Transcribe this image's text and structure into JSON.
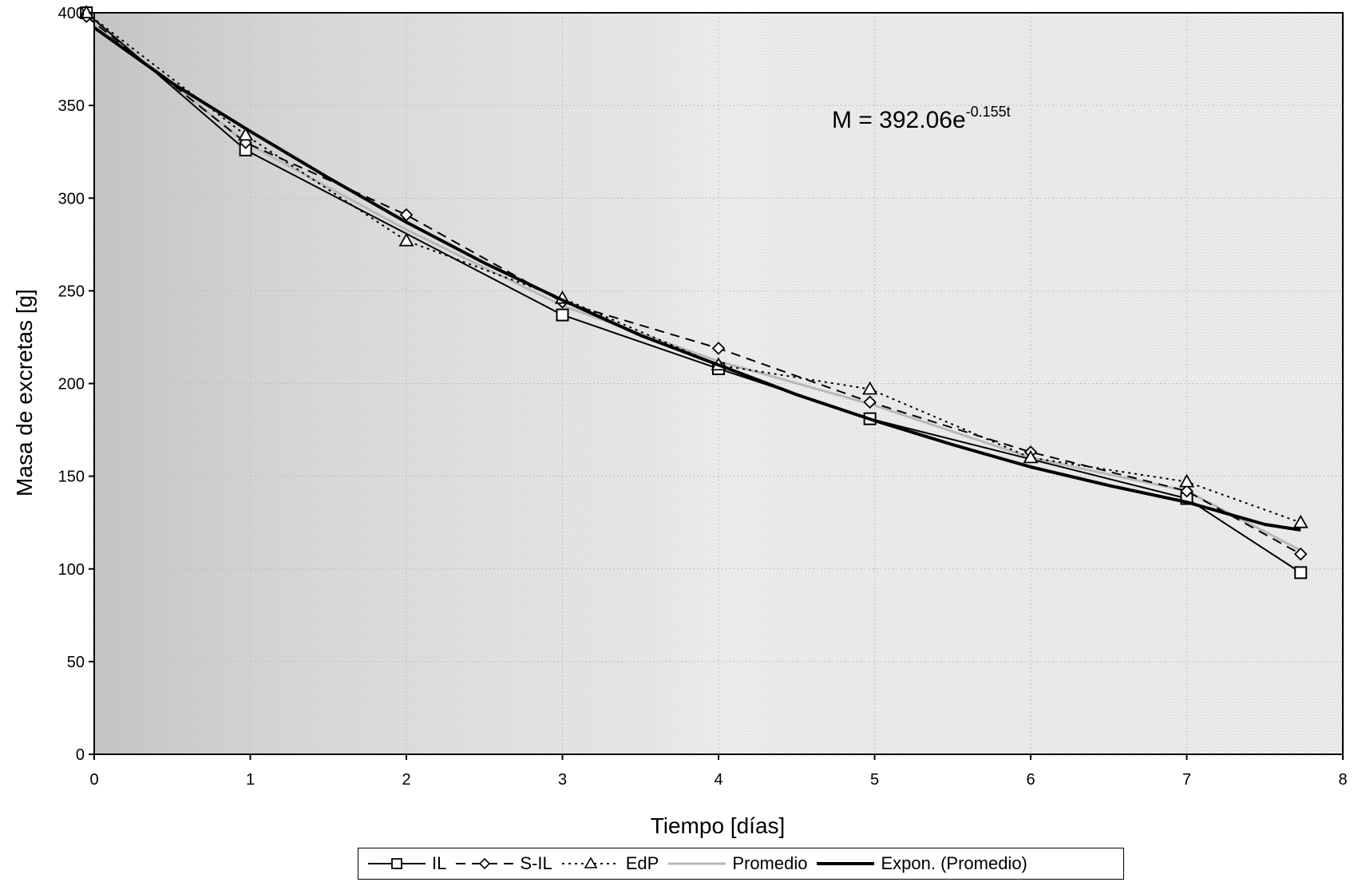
{
  "chart_data": {
    "type": "line",
    "xlabel": "Tiempo [días]",
    "ylabel": "Masa de excretas [g]",
    "xlim": [
      0,
      8
    ],
    "ylim": [
      0,
      400
    ],
    "xticks": [
      "0",
      "1",
      "2",
      "3",
      "4",
      "5",
      "6",
      "7",
      "8"
    ],
    "yticks": [
      "0",
      "50",
      "100",
      "150",
      "200",
      "250",
      "300",
      "350",
      "400"
    ],
    "annotation": {
      "base": "M = 392.06e",
      "exponent": "-0.155t"
    },
    "grid": true,
    "legend_position": "bottom",
    "series": [
      {
        "name": "IL",
        "marker": "square",
        "dash": "solid",
        "color": "#000000",
        "x": [
          -0.05,
          0.97,
          3.0,
          4.0,
          4.97,
          7.0,
          7.73
        ],
        "y": [
          400,
          326,
          237,
          208,
          181,
          138,
          98
        ]
      },
      {
        "name": "S-IL",
        "marker": "diamond",
        "dash": "dashed",
        "color": "#000000",
        "x": [
          -0.05,
          0.97,
          2.0,
          3.0,
          4.0,
          4.97,
          6.0,
          7.0,
          7.73
        ],
        "y": [
          398,
          330,
          291,
          244,
          219,
          190,
          163,
          142,
          108
        ]
      },
      {
        "name": "EdP",
        "marker": "triangle",
        "dash": "dotted",
        "color": "#000000",
        "x": [
          -0.05,
          0.97,
          2.0,
          3.0,
          4.0,
          4.97,
          6.0,
          7.0,
          7.73
        ],
        "y": [
          400,
          334,
          277,
          246,
          210,
          197,
          160,
          147,
          125
        ]
      },
      {
        "name": "Promedio",
        "marker": "none",
        "dash": "solid",
        "color": "#b8b8b8",
        "x": [
          -0.05,
          0.97,
          2.0,
          3.0,
          4.0,
          4.97,
          6.0,
          7.0,
          7.73
        ],
        "y": [
          399,
          330,
          283,
          242,
          212,
          189,
          160,
          142,
          110
        ]
      },
      {
        "name": "Expon. (Promedio)",
        "marker": "none",
        "dash": "solid",
        "color": "#000000",
        "x": [
          0.0,
          0.5,
          1.0,
          1.5,
          2.0,
          2.5,
          3.0,
          3.5,
          4.0,
          4.5,
          5.0,
          5.5,
          6.0,
          6.5,
          7.0,
          7.5,
          7.73
        ],
        "y": [
          392,
          362,
          336,
          311,
          287,
          265,
          245,
          226,
          210,
          194,
          180,
          167,
          155,
          145,
          136,
          124,
          121
        ]
      }
    ]
  }
}
